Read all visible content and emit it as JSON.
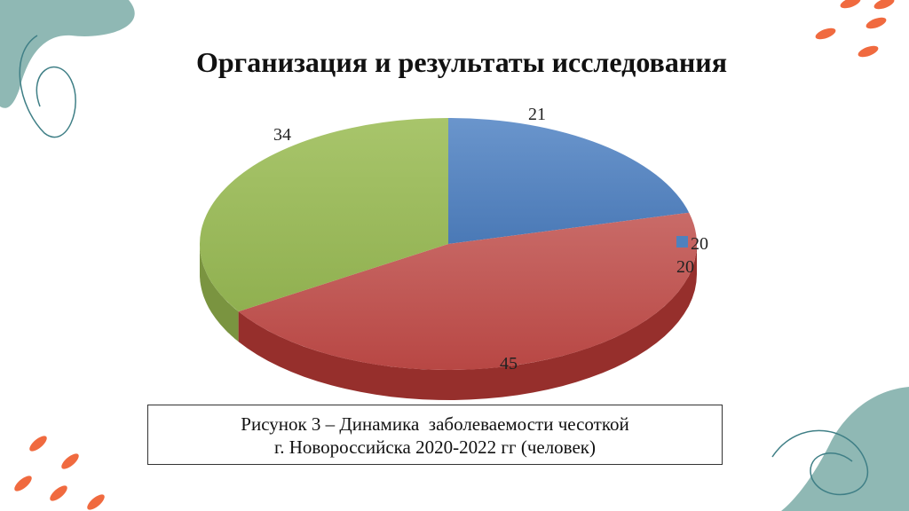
{
  "slide": {
    "title": "Организация и результаты исследования",
    "caption_line1": "Рисунок 3 – Динамика  заболеваемости чесоткой",
    "caption_line2": "г. Новороссийска 2020-2022 гг (человек)"
  },
  "colors": {
    "teal_deco": "#8fb8b4",
    "orange_deco": "#f06a3f",
    "series_blue": "#4f81bd",
    "series_red": "#c0504d",
    "series_green": "#9bbb59"
  },
  "chart_data": {
    "type": "pie",
    "three_d": true,
    "values": [
      21,
      45,
      34
    ],
    "data_labels": [
      "21",
      "45",
      "34"
    ],
    "legend": [
      {
        "name": "2020",
        "color": "#4f81bd"
      }
    ],
    "legend_position": "right"
  }
}
